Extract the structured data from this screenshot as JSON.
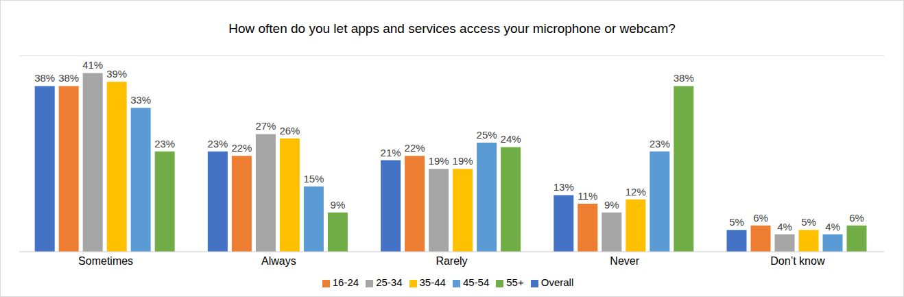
{
  "chart_data": {
    "type": "bar",
    "title": "How often do you let apps and services access your microphone or webcam?",
    "categories": [
      "Sometimes",
      "Always",
      "Rarely",
      "Never",
      "Don’t know"
    ],
    "series": [
      {
        "name": "Overall",
        "color": "#4472C4",
        "values": [
          38,
          23,
          21,
          13,
          5
        ],
        "value_labels": [
          "38%",
          "23%",
          "21%",
          "13%",
          "5%"
        ]
      },
      {
        "name": "16-24",
        "color": "#ED7D31",
        "values": [
          38,
          22,
          22,
          11,
          6
        ],
        "value_labels": [
          "38%",
          "22%",
          "22%",
          "11%",
          "6%"
        ]
      },
      {
        "name": "25-34",
        "color": "#A5A5A5",
        "values": [
          41,
          27,
          19,
          9,
          4
        ],
        "value_labels": [
          "41%",
          "27%",
          "19%",
          "9%",
          "4%"
        ]
      },
      {
        "name": "35-44",
        "color": "#FFC000",
        "values": [
          39,
          26,
          19,
          12,
          5
        ],
        "value_labels": [
          "39%",
          "26%",
          "19%",
          "12%",
          "5%"
        ]
      },
      {
        "name": "45-54",
        "color": "#5B9BD5",
        "values": [
          33,
          15,
          25,
          23,
          4
        ],
        "value_labels": [
          "33%",
          "15%",
          "25%",
          "23%",
          "4%"
        ]
      },
      {
        "name": "55+",
        "color": "#70AD47",
        "values": [
          23,
          9,
          24,
          38,
          6
        ],
        "value_labels": [
          "23%",
          "9%",
          "24%",
          "38%",
          "6%"
        ]
      }
    ],
    "ylim": [
      0,
      45
    ],
    "yticks": [
      0,
      5,
      10,
      15,
      20,
      25,
      30,
      35,
      40,
      45
    ],
    "grid": true,
    "legend": "bottom",
    "data_labels": true,
    "tick_labels": "x"
  }
}
